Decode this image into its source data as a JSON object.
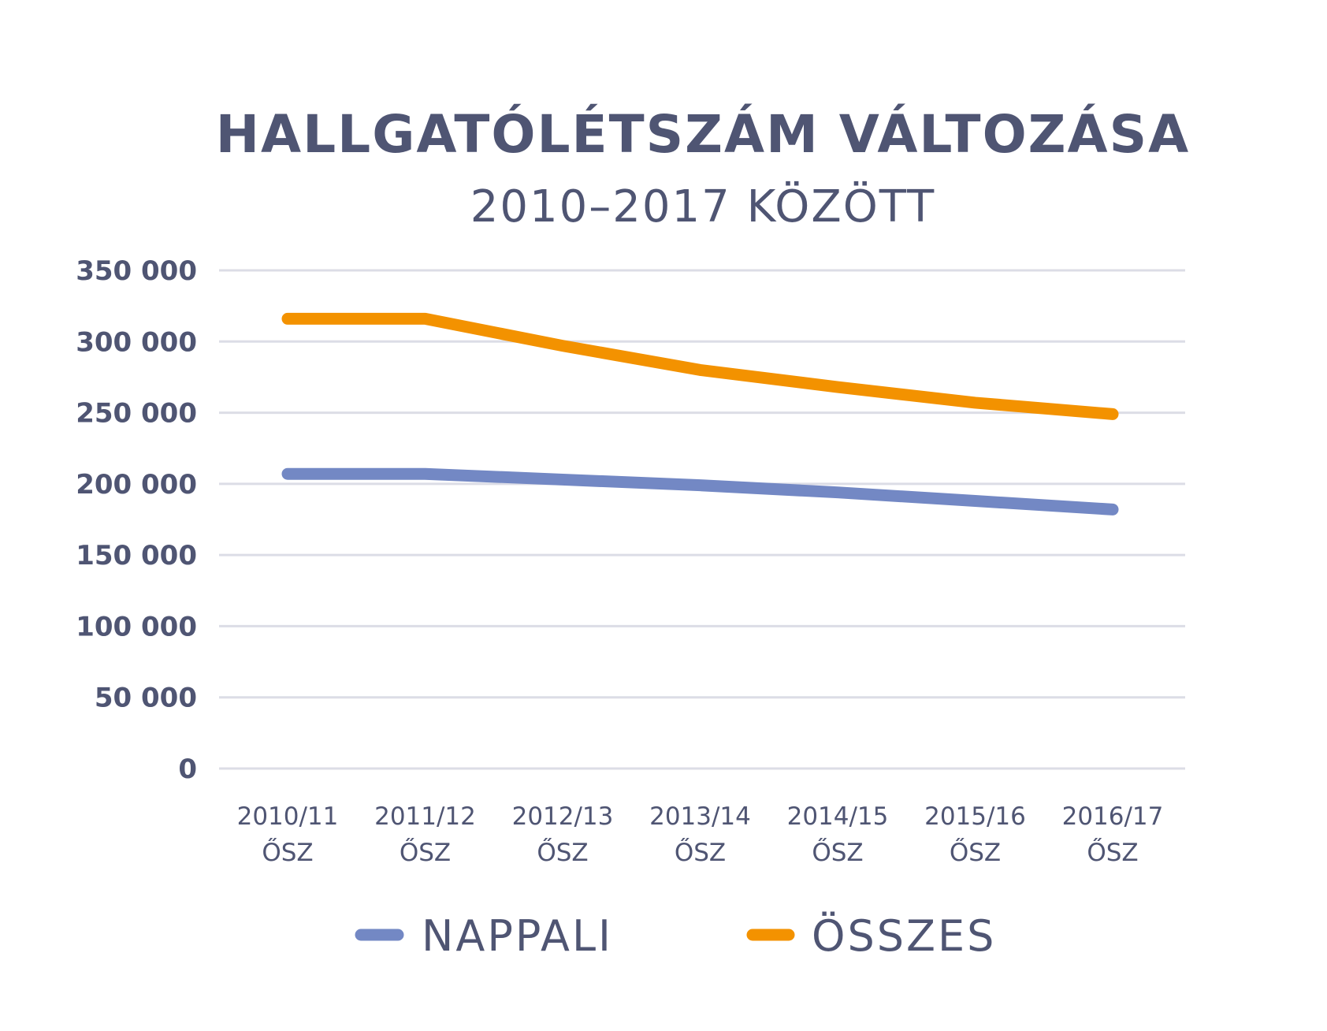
{
  "chart_data": {
    "type": "line",
    "title": "HALLGATÓLÉTSZÁM VÁLTOZÁSA",
    "subtitle": "2010–2017 KÖZÖTT",
    "categories": [
      {
        "line1": "2010/11",
        "line2": "ŐSZ"
      },
      {
        "line1": "2011/12",
        "line2": "ŐSZ"
      },
      {
        "line1": "2012/13",
        "line2": "ŐSZ"
      },
      {
        "line1": "2013/14",
        "line2": "ŐSZ"
      },
      {
        "line1": "2014/15",
        "line2": "ŐSZ"
      },
      {
        "line1": "2015/16",
        "line2": "ŐSZ"
      },
      {
        "line1": "2016/17",
        "line2": "ŐSZ"
      }
    ],
    "y_ticks": [
      0,
      50000,
      100000,
      150000,
      200000,
      250000,
      300000,
      350000
    ],
    "y_tick_labels": [
      "0",
      "50 000",
      "100 000",
      "150 000",
      "200 000",
      "250 000",
      "300 000",
      "350 000"
    ],
    "ylim": [
      0,
      350000
    ],
    "grid": true,
    "legend_position": "bottom",
    "series": [
      {
        "name": "NAPPALI",
        "color": "#7388c4",
        "values": [
          207000,
          207000,
          203000,
          199000,
          194000,
          188000,
          182000
        ]
      },
      {
        "name": "ÖSSZES",
        "color": "#f39200",
        "values": [
          316000,
          316000,
          297000,
          280000,
          268000,
          257000,
          249000
        ]
      }
    ]
  }
}
